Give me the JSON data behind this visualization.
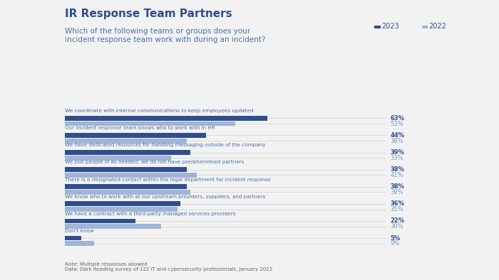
{
  "title": "IR Response Team Partners",
  "subtitle": "Which of the following teams or groups does your\nincident response team work with during an incident?",
  "categories": [
    "We coordinate with internal communications to keep employees updated",
    "Our incident response team knows who to work with in HR",
    "We have dedicated resources for handling messaging outside of the company",
    "We pull people in as needed; we do not have predetermined partners",
    "There is a designated contact within the legal department for incident response",
    "We know who to work with at our upstream providers, suppliers, and partners",
    "We have a contract with a third-party managed services providers",
    "Don't know"
  ],
  "values_2023": [
    63,
    44,
    39,
    38,
    38,
    36,
    22,
    5
  ],
  "values_2022": [
    53,
    38,
    33,
    41,
    39,
    35,
    30,
    9
  ],
  "color_2023": "#2e4e8e",
  "color_2022": "#a0b4d6",
  "background_color": "#f2f2f2",
  "note": "Note: Multiple responses allowed\nData: Dark Reading survey of 122 IT and cybersecurity professionals, January 2023",
  "xlim": [
    0,
    100
  ],
  "legend_2023": "2023",
  "legend_2022": "2022",
  "label_color_2023": "#2e4e8e",
  "label_color_2022": "#7a9abf",
  "cat_label_color": "#4a6fa5",
  "title_color": "#2e4e8e",
  "subtitle_color": "#4a6fa5"
}
